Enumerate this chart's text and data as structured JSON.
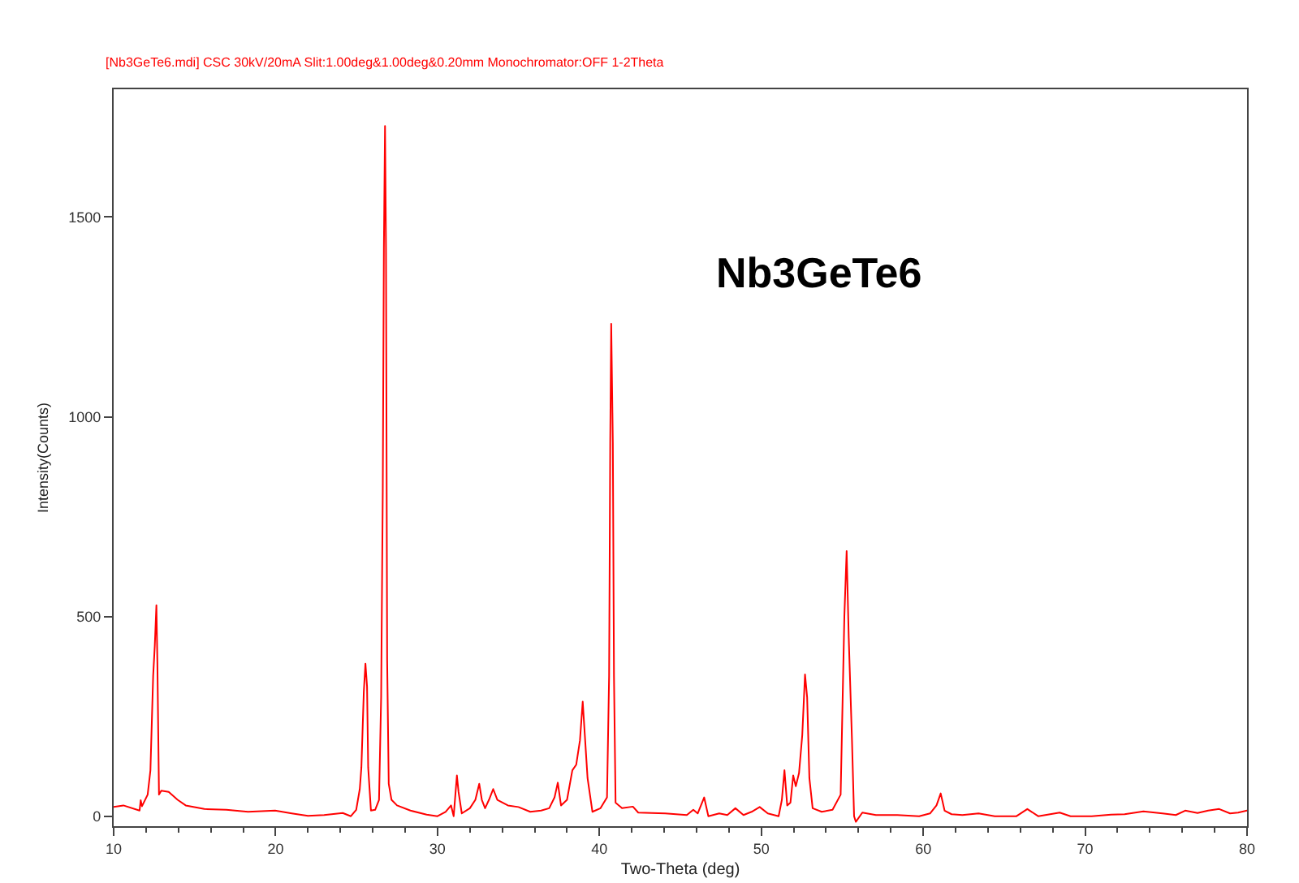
{
  "chart_data": {
    "type": "line",
    "title": "[Nb3GeTe6.mdi] CSC 30kV/20mA Slit:1.00deg&1.00deg&0.20mm Monochromator:OFF 1-2Theta",
    "xlabel": "Two-Theta (deg)",
    "ylabel": "Intensity(Counts)",
    "annotations": [
      "Nb3GeTe6"
    ],
    "x": [
      10.0,
      10.6,
      11.6,
      11.67,
      11.75,
      12.1,
      12.27,
      12.44,
      12.54,
      12.64,
      12.7,
      12.8,
      12.94,
      13.4,
      13.95,
      14.45,
      15.6,
      16.96,
      18.3,
      19.97,
      21.0,
      22.0,
      23.0,
      24.15,
      24.65,
      24.98,
      25.2,
      25.3,
      25.45,
      25.55,
      25.65,
      25.72,
      25.89,
      26.15,
      26.39,
      26.52,
      26.62,
      26.69,
      26.76,
      26.82,
      26.89,
      26.99,
      27.16,
      27.5,
      28.33,
      29.33,
      30.0,
      30.5,
      30.84,
      31.0,
      31.2,
      31.3,
      31.5,
      32.0,
      32.34,
      32.58,
      32.74,
      32.94,
      33.18,
      33.44,
      33.7,
      34.35,
      35.0,
      35.73,
      36.4,
      36.9,
      37.23,
      37.43,
      37.63,
      38.0,
      38.33,
      38.57,
      38.8,
      38.97,
      39.1,
      39.27,
      39.57,
      40.07,
      40.47,
      40.6,
      40.67,
      40.73,
      40.83,
      40.9,
      41.0,
      41.4,
      42.07,
      42.4,
      44.07,
      45.4,
      45.8,
      46.07,
      46.47,
      46.73,
      47.4,
      47.9,
      48.4,
      48.9,
      49.4,
      49.9,
      50.4,
      51.07,
      51.27,
      51.43,
      51.6,
      51.8,
      51.97,
      52.13,
      52.33,
      52.53,
      52.7,
      52.83,
      52.97,
      53.17,
      53.73,
      54.4,
      54.9,
      55.13,
      55.27,
      55.4,
      55.6,
      55.73,
      55.84,
      56.24,
      57.08,
      58.4,
      59.75,
      60.42,
      60.82,
      61.08,
      61.32,
      61.75,
      62.42,
      63.42,
      64.42,
      65.76,
      66.43,
      67.1,
      68.43,
      69.1,
      70.4,
      71.6,
      72.44,
      73.6,
      74.78,
      75.6,
      76.18,
      76.94,
      77.6,
      78.28,
      78.95,
      79.45,
      80.0
    ],
    "series": [
      {
        "color": "#ff0000",
        "values": [
          23,
          27,
          14,
          40,
          25,
          54,
          115,
          352,
          427,
          528,
          386,
          54,
          64,
          61,
          41,
          27,
          18,
          16,
          11,
          14,
          7,
          1,
          3,
          8,
          0,
          16,
          68,
          122,
          312,
          382,
          325,
          122,
          14,
          16,
          41,
          298,
          813,
          1423,
          1728,
          1423,
          393,
          81,
          41,
          27,
          14,
          4,
          0,
          11,
          27,
          0,
          102,
          61,
          7,
          20,
          41,
          81,
          41,
          20,
          41,
          68,
          41,
          27,
          23,
          11,
          14,
          20,
          47,
          84,
          27,
          41,
          115,
          129,
          190,
          287,
          203,
          95,
          11,
          20,
          47,
          352,
          935,
          1233,
          935,
          352,
          34,
          20,
          24,
          9,
          7,
          3,
          16,
          7,
          47,
          0,
          7,
          3,
          20,
          3,
          11,
          23,
          7,
          0,
          41,
          115,
          27,
          34,
          102,
          75,
          108,
          203,
          355,
          298,
          95,
          20,
          11,
          16,
          54,
          501,
          664,
          447,
          190,
          0,
          -14,
          9,
          3,
          3,
          0,
          7,
          27,
          57,
          14,
          5,
          3,
          7,
          0,
          0,
          18,
          0,
          9,
          0,
          0,
          4,
          5,
          12,
          7,
          3,
          14,
          8,
          14,
          18,
          7,
          9,
          14
        ]
      }
    ],
    "xlim": [
      10,
      80
    ],
    "ylim": [
      -25,
      1820
    ],
    "xticks": [
      10,
      {
        "value": 12,
        "label": null
      },
      {
        "value": 14,
        "label": null
      },
      {
        "value": 16,
        "label": null
      },
      {
        "value": 18,
        "label": null
      },
      20,
      {
        "value": 22,
        "label": null
      },
      {
        "value": 24,
        "label": null
      },
      {
        "value": 26,
        "label": null
      },
      {
        "value": 28,
        "label": null
      },
      30,
      {
        "value": 32,
        "label": null
      },
      {
        "value": 34,
        "label": null
      },
      {
        "value": 36,
        "label": null
      },
      {
        "value": 38,
        "label": null
      },
      40,
      {
        "value": 42,
        "label": null
      },
      {
        "value": 44,
        "label": null
      },
      {
        "value": 46,
        "label": null
      },
      {
        "value": 48,
        "label": null
      },
      50,
      {
        "value": 52,
        "label": null
      },
      {
        "value": 54,
        "label": null
      },
      {
        "value": 56,
        "label": null
      },
      {
        "value": 58,
        "label": null
      },
      60,
      {
        "value": 62,
        "label": null
      },
      {
        "value": 64,
        "label": null
      },
      {
        "value": 66,
        "label": null
      },
      {
        "value": 68,
        "label": null
      },
      70,
      {
        "value": 72,
        "label": null
      },
      {
        "value": 74,
        "label": null
      },
      {
        "value": 76,
        "label": null
      },
      {
        "value": 78,
        "label": null
      },
      80
    ],
    "yticks": [
      0,
      500,
      1000,
      1500
    ]
  }
}
